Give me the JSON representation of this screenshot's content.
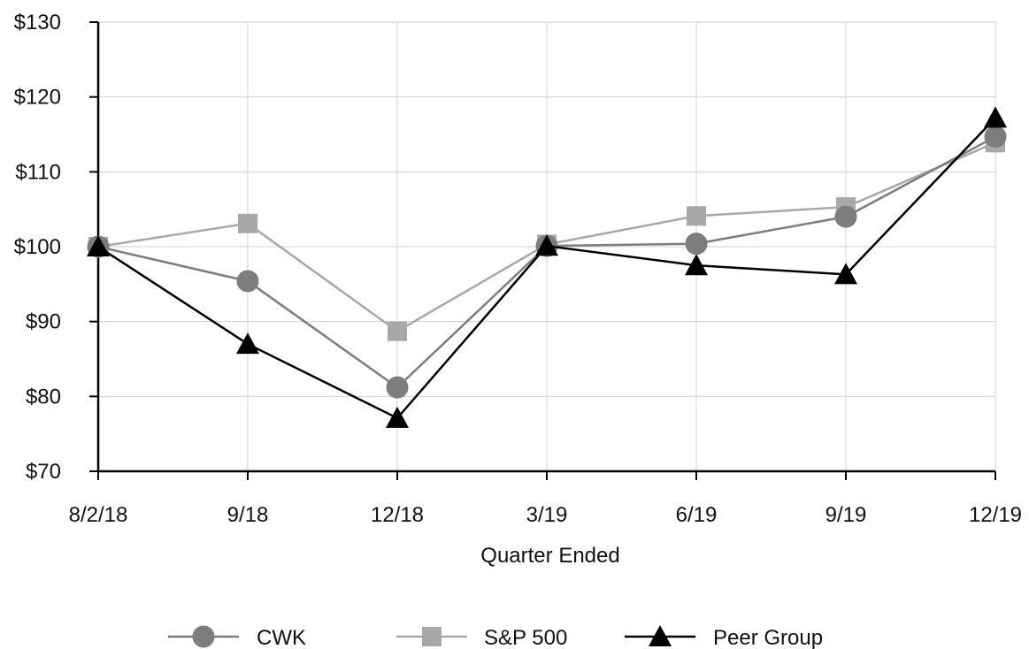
{
  "chart_data": {
    "type": "line",
    "categories": [
      "8/2/18",
      "9/18",
      "12/18",
      "3/19",
      "6/19",
      "9/19",
      "12/19"
    ],
    "y_tick_labels": [
      "$70",
      "$80",
      "$90",
      "$100",
      "$110",
      "$120",
      "$130"
    ],
    "ylim": [
      70,
      130
    ],
    "y_ticks": [
      70,
      80,
      90,
      100,
      110,
      120,
      130
    ],
    "xlabel": "Quarter Ended",
    "ylabel": "",
    "title": "",
    "grid": true,
    "legend_position": "bottom",
    "series": [
      {
        "name": "CWK",
        "marker": "circle",
        "color": "#7d7d7d",
        "values": [
          100,
          95.4,
          81.2,
          100.1,
          100.4,
          104.0,
          114.7
        ]
      },
      {
        "name": "S&P 500",
        "marker": "square",
        "color": "#a8a8a8",
        "values": [
          100,
          103.1,
          88.7,
          100.3,
          104.1,
          105.3,
          113.9
        ]
      },
      {
        "name": "Peer Group",
        "marker": "triangle",
        "color": "#000000",
        "values": [
          100,
          87.0,
          77.1,
          100.1,
          97.5,
          96.3,
          117.2
        ]
      }
    ]
  }
}
